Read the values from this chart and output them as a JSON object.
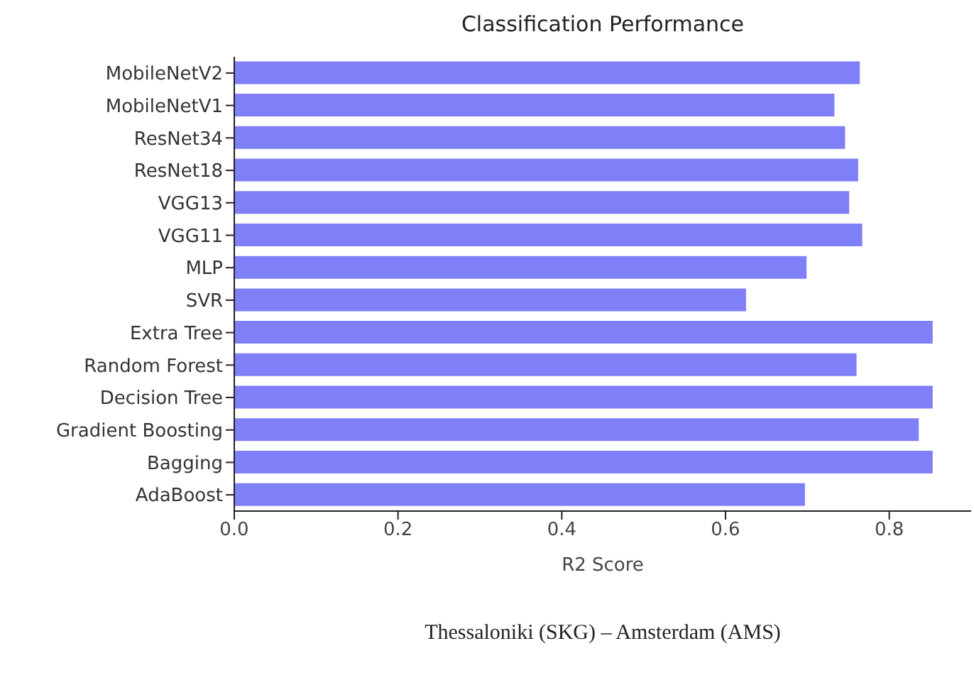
{
  "chart_data": {
    "type": "bar",
    "orientation": "horizontal",
    "title": "Classification Performance",
    "xlabel": "R2 Score",
    "categories": [
      "MobileNetV2",
      "MobileNetV1",
      "ResNet34",
      "ResNet18",
      "VGG13",
      "VGG11",
      "MLP",
      "SVR",
      "Extra Tree",
      "Random Forest",
      "Decision Tree",
      "Gradient Boosting",
      "Bagging",
      "AdaBoost"
    ],
    "values": [
      0.764,
      0.733,
      0.746,
      0.762,
      0.751,
      0.767,
      0.699,
      0.625,
      0.853,
      0.76,
      0.853,
      0.836,
      0.853,
      0.697
    ],
    "color": "#7f7ff8",
    "xlim": [
      0,
      0.9
    ],
    "xticks": [
      {
        "value": 0,
        "label": "0.0"
      },
      0.2,
      0.4,
      0.6,
      0.8
    ],
    "grid": false,
    "legend": false,
    "annotations": [
      "Thessaloniki (SKG) – Amsterdam (AMS)"
    ]
  }
}
